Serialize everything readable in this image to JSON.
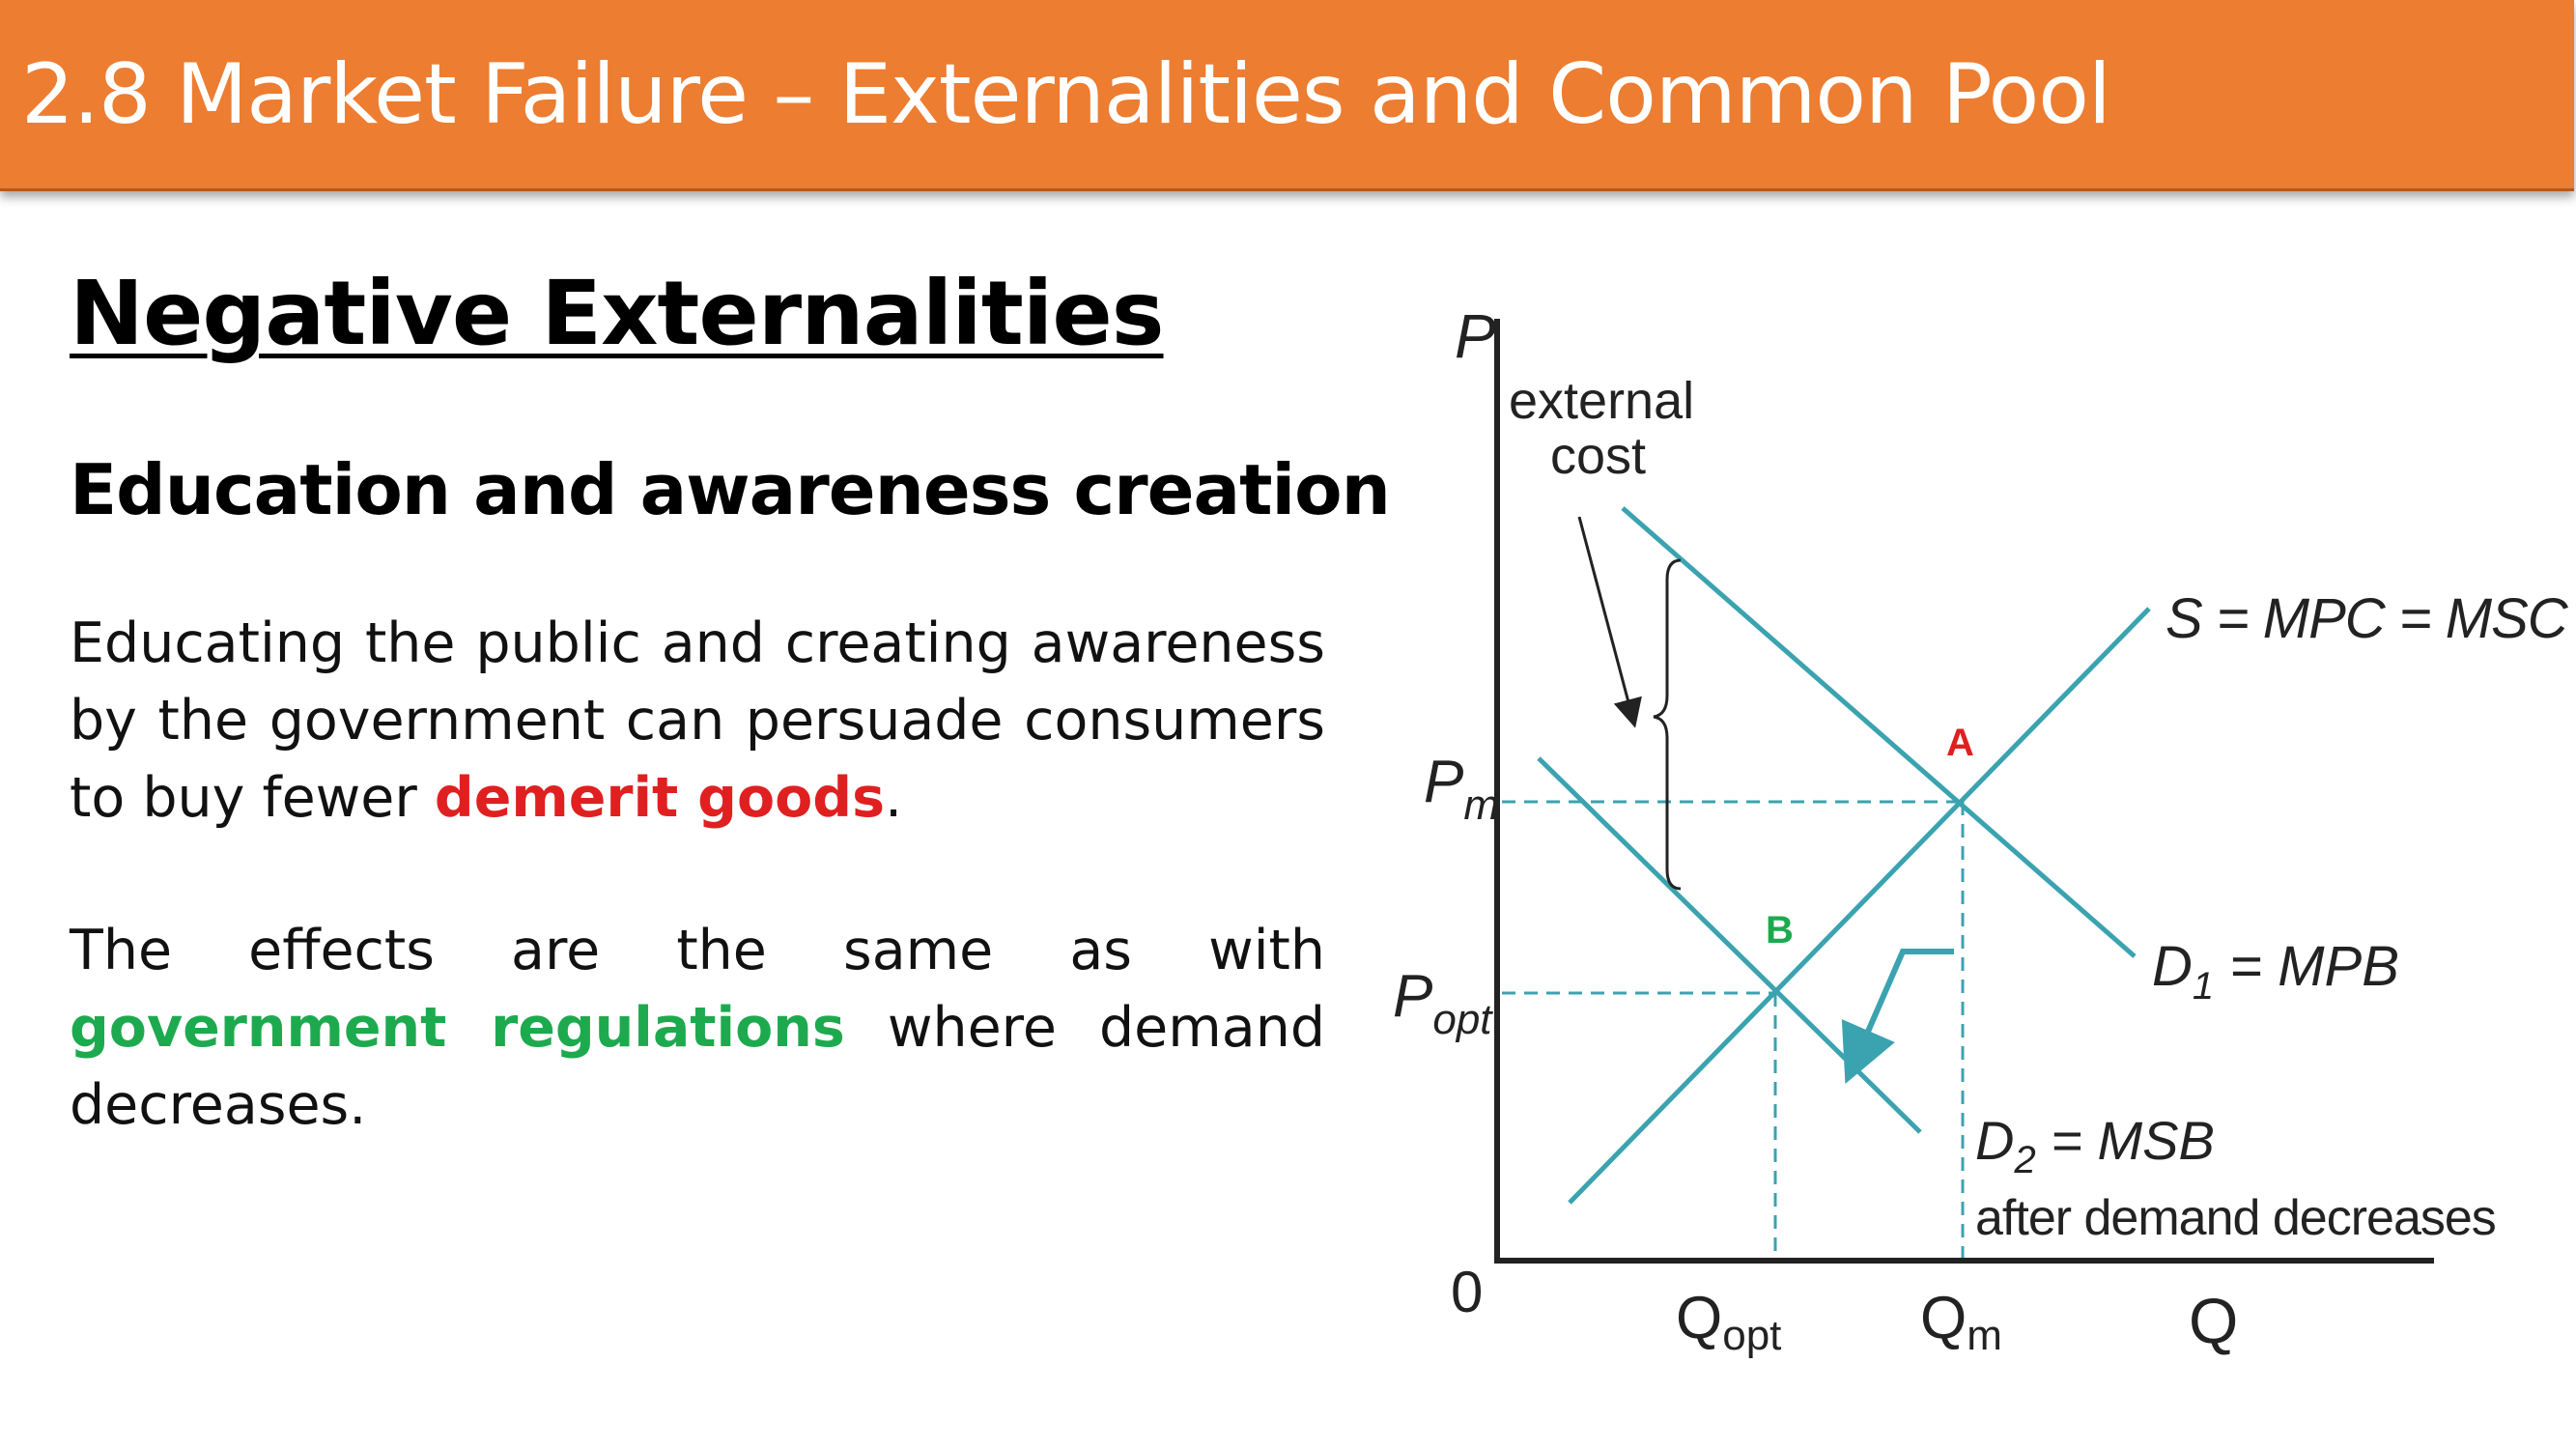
{
  "header": {
    "title": "2.8 Market Failure – Externalities and Common Pool"
  },
  "content": {
    "section_title": "Negative Externalities",
    "sub_heading": "Education and awareness creation",
    "para1": {
      "before": "Educating the public and creating awareness by the government can persuade consumers to buy fewer ",
      "highlight": "demerit goods",
      "after": "."
    },
    "para2": {
      "before": "The effects are the same as with ",
      "highlight": "government regulations",
      "after": " where demand decreases."
    }
  },
  "diagram": {
    "axis_y_label": "P",
    "axis_x_label": "Q",
    "origin_label": "0",
    "pm_label": "P",
    "pm_sub": "m",
    "popt_label": "P",
    "popt_sub": "opt",
    "qopt_label": "Q",
    "qopt_sub": "opt",
    "qm_label": "Q",
    "qm_sub": "m",
    "external_cost_line1": "external",
    "external_cost_line2": "cost",
    "supply_label": "S = MPC = MSC",
    "d1_label": "D",
    "d1_sub": "1",
    "d1_rest": " = MPB",
    "d2_label": "D",
    "d2_sub": "2",
    "d2_rest": " = MSB",
    "d2_note": "after demand decreases",
    "point_a": "A",
    "point_b": "B",
    "colors": {
      "curve": "#3BA3B0",
      "point_a": "#E02020",
      "point_b": "#1DAA4F",
      "axis": "#222222"
    }
  }
}
